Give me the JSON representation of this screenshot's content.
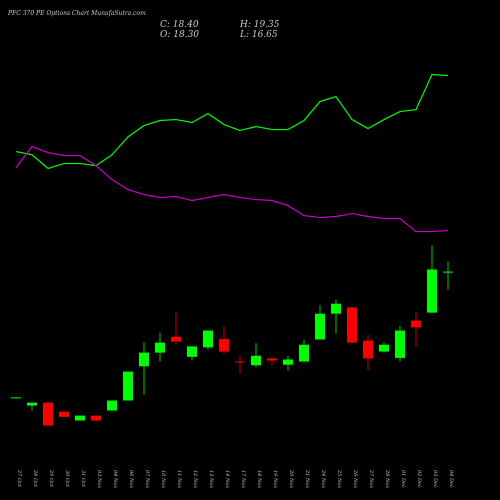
{
  "chart_data": {
    "type": "candlestick",
    "title": "PFC 370 PE Options Chart MunafaSutra.com",
    "annotations": [
      "C: 18.40",
      "O: 18.30",
      "H: 19.35",
      "L: 16.65"
    ],
    "categories": [
      "27 Oct",
      "28 Oct",
      "29 Oct",
      "30 Oct",
      "31 Oct",
      "03 Nov",
      "04 Nov",
      "06 Nov",
      "07 Nov",
      "10 Nov",
      "11 Nov",
      "12 Nov",
      "13 Nov",
      "14 Nov",
      "17 Nov",
      "18 Nov",
      "19 Nov",
      "20 Nov",
      "21 Nov",
      "24 Nov",
      "25 Nov",
      "26 Nov",
      "27 Nov",
      "28 Nov",
      "01 Dec",
      "02 Dec",
      "03 Dec",
      "04 Dec"
    ],
    "open": [
      6.45,
      5.67,
      5.95,
      5.1,
      4.25,
      4.72,
      5.2,
      6.15,
      9.4,
      10.7,
      12.2,
      10.3,
      11.2,
      12.0,
      9.85,
      9.5,
      10.15,
      9.55,
      9.85,
      11.95,
      14.4,
      15.0,
      11.85,
      10.8,
      10.2,
      13.75,
      14.5,
      18.3
    ],
    "high": [
      6.45,
      5.95,
      6.05,
      5.1,
      4.72,
      4.72,
      6.15,
      8.9,
      11.7,
      12.6,
      14.6,
      11.3,
      12.8,
      13.2,
      10.4,
      11.6,
      10.2,
      10.4,
      11.95,
      15.2,
      15.75,
      15.0,
      12.4,
      11.7,
      13.25,
      14.6,
      20.9,
      19.35
    ],
    "low": [
      6.45,
      5.2,
      3.77,
      4.6,
      4.25,
      4.25,
      5.2,
      6.15,
      6.7,
      9.85,
      11.45,
      9.95,
      11.0,
      10.6,
      8.7,
      9.3,
      9.5,
      9.0,
      9.85,
      11.95,
      12.5,
      11.65,
      9.0,
      10.7,
      9.85,
      11.2,
      14.5,
      16.65
    ],
    "close": [
      6.45,
      5.95,
      3.77,
      4.6,
      4.72,
      4.25,
      6.15,
      8.9,
      10.7,
      11.65,
      11.75,
      11.3,
      12.8,
      10.8,
      9.8,
      10.4,
      9.95,
      10.05,
      11.45,
      14.4,
      15.35,
      11.65,
      10.15,
      11.45,
      12.8,
      13.1,
      18.6,
      18.4
    ],
    "up_color": "#00ff00",
    "down_color": "#ff0000",
    "series": [
      {
        "color": "#00ff00",
        "values": [
          29.8,
          29.5,
          28.2,
          28.66,
          28.66,
          28.47,
          29.5,
          31.2,
          32.27,
          32.75,
          32.84,
          32.56,
          33.41,
          32.37,
          31.8,
          32.18,
          31.89,
          31.89,
          32.75,
          34.55,
          35.03,
          32.84,
          31.99,
          32.84,
          33.6,
          33.79,
          37.12,
          37.02
        ]
      },
      {
        "color": "#cc00cc",
        "values": [
          28.28,
          30.28,
          29.7,
          29.42,
          29.42,
          28.47,
          27.14,
          26.19,
          25.72,
          25.43,
          25.53,
          25.15,
          25.43,
          25.72,
          25.43,
          25.24,
          25.15,
          24.67,
          23.72,
          23.53,
          23.63,
          23.91,
          23.63,
          23.44,
          23.44,
          22.2,
          22.2,
          22.3
        ]
      }
    ],
    "ylim": [
      -3.3,
      44.2
    ]
  }
}
